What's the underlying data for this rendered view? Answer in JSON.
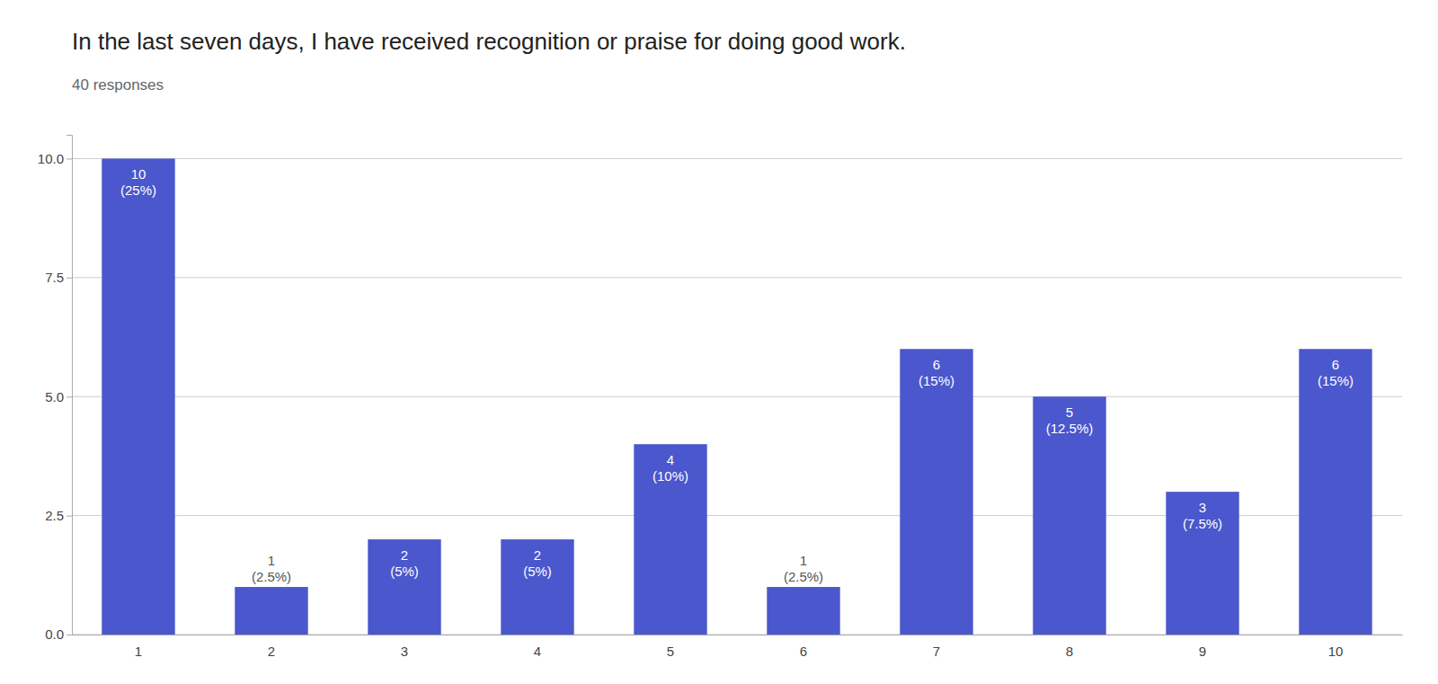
{
  "chart_data": {
    "type": "bar",
    "title": "In the last seven days, I have received recognition or praise for doing good work.",
    "subtitle": "40 responses",
    "categories": [
      1,
      2,
      3,
      4,
      5,
      6,
      7,
      8,
      9,
      10
    ],
    "values": [
      10,
      1,
      2,
      2,
      4,
      1,
      6,
      5,
      3,
      6
    ],
    "percentages": [
      25,
      2.5,
      5,
      5,
      10,
      2.5,
      15,
      12.5,
      7.5,
      15
    ],
    "percentage_labels": [
      "(25%)",
      "(2.5%)",
      "(5%)",
      "(5%)",
      "(10%)",
      "(2.5%)",
      "(15%)",
      "(12.5%)",
      "(7.5%)",
      "(15%)"
    ],
    "color": "#4b57cc",
    "ylim": [
      0,
      10.5
    ],
    "yticks": [
      {
        "value": 0,
        "label": "0.0"
      },
      2.5,
      {
        "value": 5,
        "label": "5.0"
      },
      7.5,
      {
        "value": 10,
        "label": "10.0"
      }
    ],
    "grid": true,
    "data_labels": true
  }
}
